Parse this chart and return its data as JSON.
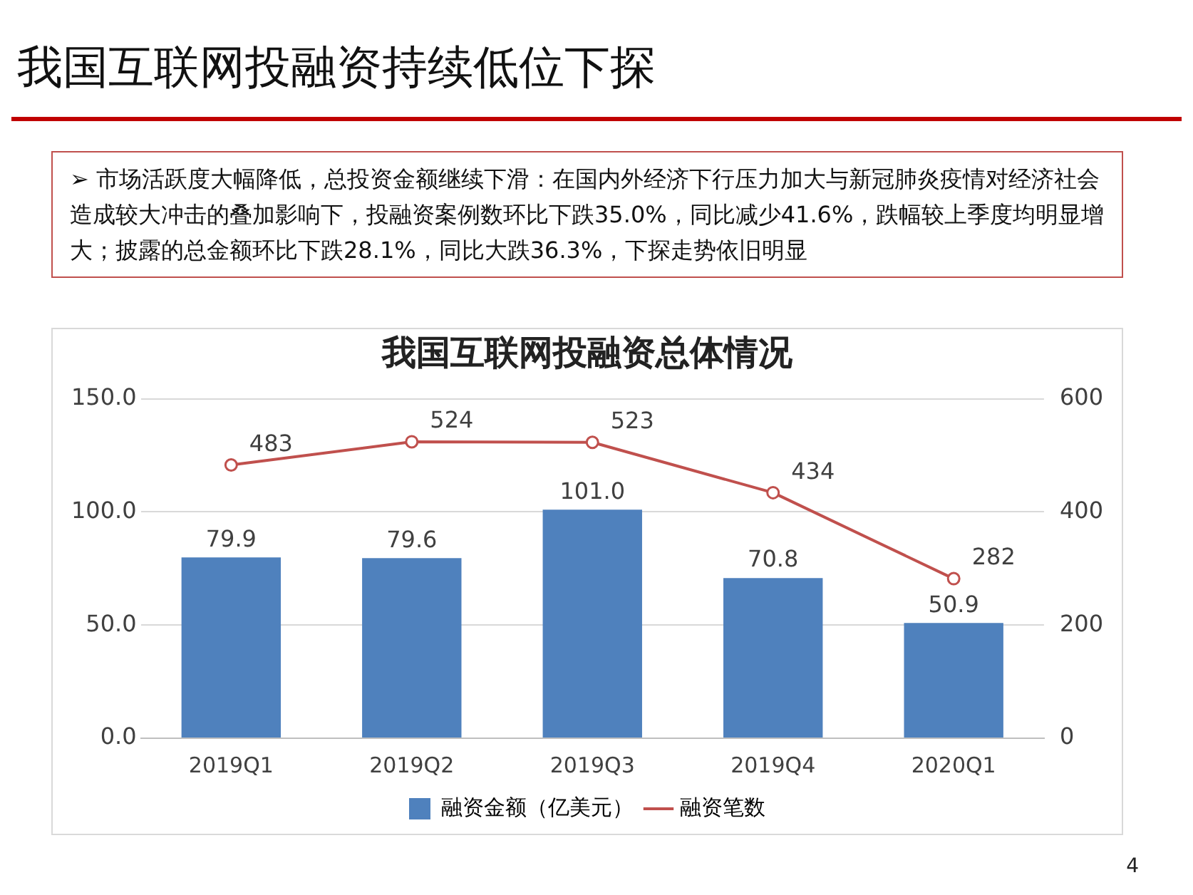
{
  "chart_data": {
    "type": "bar",
    "title": "我国互联网投融资持续低位下探",
    "subtitle": "我国互联网投融资总体情况",
    "annotations": [
      "➢ 市场活跃度大幅降低，总投资金额继续下滑：在国内外经济下行压力加大与新冠肺炎疫情对经济社会造成较大冲击的叠加影响下，投融资案例数环比下跌35.0%，同比减少41.6%，跌幅较上季度均明显增大；披露的总金额环比下跌28.1%，同比大跌36.3%，下探走势依旧明显",
      "4"
    ],
    "categories": [
      "2019Q1",
      "2019Q2",
      "2019Q3",
      "2019Q4",
      "2020Q1"
    ],
    "series": [
      {
        "name": "融资金额（亿美元）",
        "color": "#4f81bd",
        "values": [
          79.9,
          79.6,
          101.0,
          70.8,
          50.9
        ],
        "value_labels": [
          "79.9",
          "79.6",
          "101.0",
          "70.8",
          "50.9"
        ]
      },
      {
        "name": "融资笔数",
        "type": "line",
        "axis": "y2",
        "color": "#c0504d",
        "marker": "circle",
        "values": [
          483,
          524,
          523,
          434,
          282
        ],
        "value_labels": [
          "483",
          "524",
          "523",
          "434",
          "282"
        ]
      }
    ],
    "ylim": [
      0,
      150
    ],
    "yticks": [
      {
        "value": 0,
        "label": "0.0"
      },
      {
        "value": 50,
        "label": "50.0"
      },
      {
        "value": 100,
        "label": "100.0"
      },
      {
        "value": 150,
        "label": "150.0"
      }
    ],
    "y2lim": [
      0,
      600
    ],
    "y2ticks": [
      0,
      200,
      400,
      600
    ],
    "grid": "y",
    "legend": "bottom"
  }
}
